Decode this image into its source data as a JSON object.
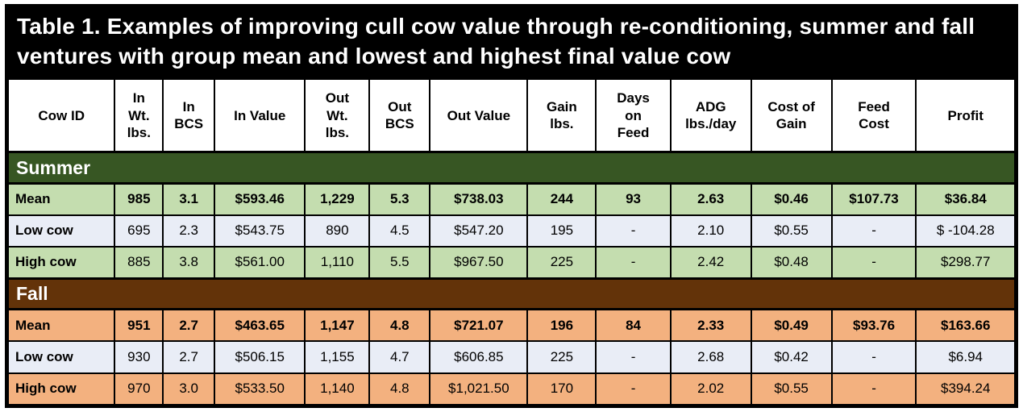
{
  "colors": {
    "border": "#000000",
    "title_bg": "#000000",
    "title_text": "#ffffff",
    "summer_header_bg": "#375623",
    "summer_row_bg": "#c4ddaf",
    "fall_header_bg": "#633309",
    "fall_row_bg": "#f3b17f",
    "low_row_bg": "#e9edf6"
  },
  "table": {
    "title": "Table 1. Examples of improving cull cow value through re-conditioning, summer and fall ventures with group mean and lowest and highest final value cow",
    "columns": [
      "Cow ID",
      "In\nWt.\nlbs.",
      "In\nBCS",
      "In Value",
      "Out\nWt.\nlbs.",
      "Out\nBCS",
      "Out Value",
      "Gain\nlbs.",
      "Days\non\nFeed",
      "ADG\nlbs./day",
      "Cost of\nGain",
      "Feed\nCost",
      "Profit"
    ],
    "sections": [
      {
        "label": "Summer",
        "tone": "summer",
        "rows": [
          {
            "label": "Mean",
            "tone": "summer",
            "bold": true,
            "values": [
              "985",
              "3.1",
              "$593.46",
              "1,229",
              "5.3",
              "$738.03",
              "244",
              "93",
              "2.63",
              "$0.46",
              "$107.73",
              "$36.84"
            ]
          },
          {
            "label": "Low cow",
            "tone": "low",
            "bold": false,
            "values": [
              "695",
              "2.3",
              "$543.75",
              "890",
              "4.5",
              "$547.20",
              "195",
              "-",
              "2.10",
              "$0.55",
              "-",
              "$ -104.28"
            ]
          },
          {
            "label": "High cow",
            "tone": "summer",
            "bold": false,
            "values": [
              "885",
              "3.8",
              "$561.00",
              "1,110",
              "5.5",
              "$967.50",
              "225",
              "-",
              "2.42",
              "$0.48",
              "-",
              "$298.77"
            ]
          }
        ]
      },
      {
        "label": "Fall",
        "tone": "fall",
        "rows": [
          {
            "label": "Mean",
            "tone": "fall",
            "bold": true,
            "values": [
              "951",
              "2.7",
              "$463.65",
              "1,147",
              "4.8",
              "$721.07",
              "196",
              "84",
              "2.33",
              "$0.49",
              "$93.76",
              "$163.66"
            ]
          },
          {
            "label": "Low cow",
            "tone": "low",
            "bold": false,
            "values": [
              "930",
              "2.7",
              "$506.15",
              "1,155",
              "4.7",
              "$606.85",
              "225",
              "-",
              "2.68",
              "$0.42",
              "-",
              "$6.94"
            ]
          },
          {
            "label": "High cow",
            "tone": "fall",
            "bold": false,
            "values": [
              "970",
              "3.0",
              "$533.50",
              "1,140",
              "4.8",
              "$1,021.50",
              "170",
              "-",
              "2.02",
              "$0.55",
              "-",
              "$394.24"
            ]
          }
        ]
      }
    ]
  }
}
